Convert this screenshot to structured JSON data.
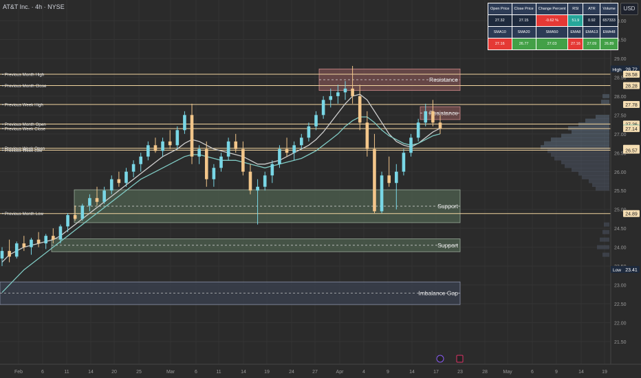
{
  "header": {
    "title": "AT&T Inc. · 4h · NYSE",
    "currency": "USD"
  },
  "stats_table": {
    "row1_headers": [
      "Open Price",
      "Close Price",
      "Change Percent",
      "RSI",
      "ATR",
      "Volume"
    ],
    "row1_values": [
      "27.32",
      "27.15",
      "-0.62 %",
      "51.9",
      "0.92",
      "657333"
    ],
    "row2_headers": [
      "SMA10",
      "SMA20",
      "SMA50",
      "EMA8",
      "EMA13",
      "EMA48"
    ],
    "row2_values": [
      "27.16",
      "26.77",
      "27.03",
      "27.16",
      "27.09",
      "26.89"
    ]
  },
  "chart_data": {
    "type": "candlestick",
    "y_range": [
      21.5,
      30.25
    ],
    "y_ticks": [
      "30.00",
      "29.50",
      "29.00",
      "28.50",
      "28.00",
      "27.50",
      "27.00",
      "26.50",
      "26.00",
      "25.50",
      "25.00",
      "24.50",
      "24.00",
      "23.50",
      "23.00",
      "22.50",
      "22.00",
      "21.50"
    ],
    "x_ticks": [
      "Feb",
      "6",
      "11",
      "14",
      "20",
      "25",
      "Mar",
      "6",
      "11",
      "14",
      "19",
      "24",
      "27",
      "Apr",
      "4",
      "9",
      "14",
      "17",
      "23",
      "28",
      "May",
      "6",
      "9",
      "14",
      "19"
    ],
    "price_labels": [
      {
        "label": "High",
        "value": "28.72",
        "kind": "high"
      },
      {
        "label": "",
        "value": "28.58",
        "kind": "level"
      },
      {
        "label": "",
        "value": "28.28",
        "kind": "level"
      },
      {
        "label": "",
        "value": "27.78",
        "kind": "level"
      },
      {
        "label": "",
        "value": "27.26",
        "kind": "level"
      },
      {
        "label": "",
        "value": "27.15",
        "kind": "current"
      },
      {
        "label": "",
        "value": "27.14",
        "kind": "level"
      },
      {
        "label": "",
        "value": "26.62",
        "kind": "level"
      },
      {
        "label": "",
        "value": "26.57",
        "kind": "level"
      },
      {
        "label": "",
        "value": "24.89",
        "kind": "level"
      },
      {
        "label": "Low",
        "value": "23.41",
        "kind": "low"
      }
    ],
    "horizontal_levels": [
      {
        "name": "Previous Month High",
        "value": 28.58
      },
      {
        "name": "Previous Month Close",
        "value": 28.28
      },
      {
        "name": "Previous Week High",
        "value": 27.78
      },
      {
        "name": "Previous Month Open",
        "value": 27.26
      },
      {
        "name": "Previous Week Close",
        "value": 27.14
      },
      {
        "name": "Previous Week Open",
        "value": 26.62
      },
      {
        "name": "Previous Week Low",
        "value": 26.57
      },
      {
        "name": "Previous Month Low",
        "value": 24.89
      }
    ],
    "zones": [
      {
        "label": "Resistance",
        "top": 28.72,
        "bottom": 28.15,
        "kind": "resistance"
      },
      {
        "label": "Resistance",
        "top": 27.72,
        "bottom": 27.38,
        "kind": "resistance"
      },
      {
        "label": "Support",
        "top": 25.52,
        "bottom": 24.65,
        "kind": "support"
      },
      {
        "label": "Support",
        "top": 24.22,
        "bottom": 23.88,
        "kind": "support"
      },
      {
        "label": "Imbalance Gap",
        "top": 23.08,
        "bottom": 22.48,
        "kind": "gap"
      }
    ],
    "candles": [
      [
        23.7,
        24.0,
        23.5,
        23.9
      ],
      [
        23.9,
        24.2,
        23.6,
        23.75
      ],
      [
        23.75,
        24.15,
        23.7,
        24.1
      ],
      [
        24.1,
        24.3,
        23.9,
        24.0
      ],
      [
        24.0,
        24.25,
        23.8,
        24.2
      ],
      [
        24.2,
        24.4,
        24.0,
        24.1
      ],
      [
        24.1,
        24.35,
        23.95,
        24.3
      ],
      [
        24.3,
        24.5,
        24.1,
        24.2
      ],
      [
        24.2,
        24.6,
        24.1,
        24.55
      ],
      [
        24.55,
        24.9,
        24.4,
        24.85
      ],
      [
        24.85,
        25.1,
        24.7,
        24.75
      ],
      [
        24.75,
        25.15,
        24.7,
        25.1
      ],
      [
        25.1,
        25.4,
        24.95,
        25.3
      ],
      [
        25.3,
        25.6,
        25.1,
        25.2
      ],
      [
        25.2,
        25.6,
        25.15,
        25.5
      ],
      [
        25.5,
        25.9,
        25.4,
        25.8
      ],
      [
        25.8,
        26.0,
        25.6,
        25.7
      ],
      [
        25.7,
        26.1,
        25.6,
        26.0
      ],
      [
        26.0,
        26.3,
        25.85,
        26.2
      ],
      [
        26.2,
        26.5,
        26.0,
        26.4
      ],
      [
        26.4,
        26.8,
        26.3,
        26.7
      ],
      [
        26.7,
        26.9,
        26.5,
        26.55
      ],
      [
        26.55,
        26.9,
        26.4,
        26.8
      ],
      [
        26.8,
        27.1,
        26.6,
        26.7
      ],
      [
        26.7,
        27.2,
        26.6,
        27.1
      ],
      [
        27.1,
        27.6,
        27.0,
        27.5
      ],
      [
        27.5,
        27.8,
        26.2,
        26.4
      ],
      [
        26.4,
        26.7,
        26.2,
        26.6
      ],
      [
        26.6,
        26.8,
        25.6,
        25.8
      ],
      [
        25.8,
        26.2,
        25.6,
        26.1
      ],
      [
        26.1,
        26.5,
        26.0,
        26.4
      ],
      [
        26.4,
        26.9,
        26.3,
        26.8
      ],
      [
        26.8,
        27.0,
        26.5,
        26.6
      ],
      [
        26.6,
        26.8,
        25.9,
        26.0
      ],
      [
        26.0,
        26.2,
        25.4,
        25.5
      ],
      [
        25.5,
        25.8,
        24.6,
        25.6
      ],
      [
        25.6,
        26.0,
        25.5,
        25.9
      ],
      [
        25.9,
        26.3,
        25.7,
        26.2
      ],
      [
        26.2,
        26.7,
        26.1,
        26.6
      ],
      [
        26.6,
        26.9,
        26.4,
        26.5
      ],
      [
        26.5,
        26.8,
        26.3,
        26.7
      ],
      [
        26.7,
        27.0,
        26.6,
        26.9
      ],
      [
        26.9,
        27.3,
        26.8,
        27.2
      ],
      [
        27.2,
        27.6,
        27.1,
        27.5
      ],
      [
        27.5,
        28.0,
        27.4,
        27.9
      ],
      [
        27.9,
        28.2,
        27.7,
        28.0
      ],
      [
        28.0,
        28.3,
        27.8,
        28.1
      ],
      [
        28.1,
        28.4,
        27.9,
        28.2
      ],
      [
        28.2,
        28.8,
        27.8,
        28.0
      ],
      [
        28.0,
        28.3,
        27.1,
        27.3
      ],
      [
        27.3,
        27.6,
        26.4,
        26.6
      ],
      [
        26.6,
        27.0,
        24.9,
        24.95
      ],
      [
        24.95,
        26.0,
        24.9,
        25.9
      ],
      [
        25.9,
        26.4,
        25.6,
        25.7
      ],
      [
        25.7,
        26.2,
        25.0,
        26.0
      ],
      [
        26.0,
        26.6,
        25.9,
        26.5
      ],
      [
        26.5,
        27.0,
        26.4,
        26.9
      ],
      [
        26.9,
        27.4,
        26.8,
        27.3
      ],
      [
        27.3,
        27.8,
        27.2,
        27.6
      ],
      [
        27.6,
        27.9,
        27.2,
        27.3
      ],
      [
        27.3,
        27.5,
        27.0,
        27.15
      ]
    ],
    "series": [
      {
        "name": "",
        "color": "#cfcfcf",
        "values": [
          23.6,
          23.8,
          23.9,
          24.0,
          24.05,
          24.1,
          24.15,
          24.2,
          24.3,
          24.45,
          24.6,
          24.75,
          24.9,
          25.05,
          25.2,
          25.35,
          25.5,
          25.65,
          25.8,
          25.95,
          26.1,
          26.25,
          26.4,
          26.5,
          26.6,
          26.75,
          26.85,
          26.8,
          26.7,
          26.6,
          26.55,
          26.5,
          26.45,
          26.4,
          26.3,
          26.2,
          26.2,
          26.25,
          26.3,
          26.4,
          26.5,
          26.6,
          26.7,
          26.85,
          27.05,
          27.3,
          27.55,
          27.8,
          28.0,
          28.05,
          27.9,
          27.6,
          27.3,
          27.0,
          26.8,
          26.7,
          26.65,
          26.75,
          26.9,
          27.05,
          27.15
        ]
      },
      {
        "name": "",
        "color": "#80cbc4",
        "values": [
          22.8,
          23.0,
          23.2,
          23.4,
          23.55,
          23.7,
          23.85,
          24.0,
          24.15,
          24.3,
          24.45,
          24.6,
          24.75,
          24.9,
          25.05,
          25.2,
          25.35,
          25.5,
          25.65,
          25.8,
          25.9,
          26.0,
          26.1,
          26.2,
          26.3,
          26.4,
          26.45,
          26.45,
          26.4,
          26.35,
          26.3,
          26.3,
          26.3,
          26.25,
          26.2,
          26.15,
          26.1,
          26.15,
          26.2,
          26.25,
          26.3,
          26.35,
          26.45,
          26.55,
          26.7,
          26.85,
          27.0,
          27.2,
          27.35,
          27.45,
          27.45,
          27.3,
          27.1,
          26.95,
          26.85,
          26.75,
          26.7,
          26.75,
          26.85,
          26.95,
          27.0
        ]
      }
    ]
  }
}
